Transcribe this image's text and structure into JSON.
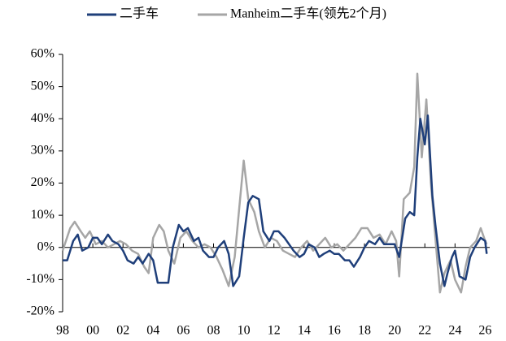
{
  "chart_data": {
    "type": "line",
    "series": [
      {
        "name": "二手车",
        "color": "#1f3f7a",
        "x": [
          1998.0,
          1998.3,
          1998.7,
          1999.0,
          1999.3,
          1999.7,
          2000.0,
          2000.3,
          2000.6,
          2001.0,
          2001.3,
          2001.7,
          2002.0,
          2002.3,
          2002.7,
          2003.0,
          2003.3,
          2003.7,
          2004.0,
          2004.3,
          2004.7,
          2005.0,
          2005.3,
          2005.7,
          2006.0,
          2006.3,
          2006.7,
          2007.0,
          2007.3,
          2007.7,
          2008.0,
          2008.3,
          2008.7,
          2009.0,
          2009.3,
          2009.7,
          2010.0,
          2010.3,
          2010.6,
          2011.0,
          2011.3,
          2011.7,
          2012.0,
          2012.3,
          2012.7,
          2013.0,
          2013.3,
          2013.7,
          2014.0,
          2014.3,
          2014.7,
          2015.0,
          2015.3,
          2015.7,
          2016.0,
          2016.3,
          2016.7,
          2017.0,
          2017.3,
          2017.7,
          2018.0,
          2018.3,
          2018.7,
          2019.0,
          2019.3,
          2019.7,
          2020.0,
          2020.3,
          2020.7,
          2021.0,
          2021.3,
          2021.5,
          2021.7,
          2022.0,
          2022.2,
          2022.5,
          2022.7,
          2023.0,
          2023.3,
          2023.5,
          2023.8,
          2024.0,
          2024.3,
          2024.7,
          2025.0,
          2025.3,
          2025.7,
          2026.0,
          2026.1
        ],
        "values": [
          -4,
          -4,
          2,
          4,
          -1,
          0,
          3,
          3,
          1,
          4,
          2,
          1,
          -1,
          -4,
          -5,
          -3,
          -5,
          -2,
          -4,
          -11,
          -11,
          -11,
          0,
          7,
          5,
          6,
          2,
          3,
          -1,
          -3,
          -3,
          0,
          2,
          -2,
          -12,
          -9,
          3,
          14,
          16,
          15,
          5,
          2,
          5,
          5,
          3,
          1,
          -1,
          -3,
          -2,
          1,
          0,
          -3,
          -2,
          -1,
          -2,
          -2,
          -4,
          -4,
          -6,
          -3,
          0,
          2,
          1,
          3,
          1,
          1,
          1,
          -3,
          9,
          11,
          10,
          28,
          40,
          32,
          41,
          16,
          7,
          -5,
          -12,
          -8,
          -3,
          -1,
          -9,
          -10,
          -3,
          0,
          3,
          2,
          -2
        ]
      },
      {
        "name": "Manheim二手车(领先2个月)",
        "color": "#a6a6a6",
        "x": [
          1998.0,
          1998.5,
          1998.8,
          1999.2,
          1999.5,
          1999.8,
          2000.2,
          2000.6,
          2001.0,
          2001.4,
          2001.8,
          2002.2,
          2002.6,
          2003.0,
          2003.4,
          2003.7,
          2004.0,
          2004.4,
          2004.7,
          2005.0,
          2005.4,
          2005.8,
          2006.2,
          2006.6,
          2007.0,
          2007.4,
          2007.8,
          2008.2,
          2008.6,
          2009.0,
          2009.4,
          2009.7,
          2010.0,
          2010.3,
          2010.7,
          2011.0,
          2011.4,
          2011.8,
          2012.2,
          2012.6,
          2013.0,
          2013.4,
          2013.8,
          2014.2,
          2014.6,
          2015.0,
          2015.4,
          2015.8,
          2016.2,
          2016.6,
          2017.0,
          2017.4,
          2017.8,
          2018.2,
          2018.6,
          2019.0,
          2019.4,
          2019.8,
          2020.1,
          2020.3,
          2020.6,
          2021.0,
          2021.3,
          2021.5,
          2021.8,
          2022.1,
          2022.4,
          2022.7,
          2023.0,
          2023.3,
          2023.7,
          2024.0,
          2024.4,
          2024.7,
          2025.0,
          2025.4,
          2025.7,
          2026.0,
          2026.1
        ],
        "values": [
          -1,
          6,
          8,
          5,
          3,
          5,
          1,
          2,
          0,
          1,
          2,
          1,
          -1,
          -2,
          -6,
          -8,
          3,
          7,
          5,
          -1,
          -5,
          3,
          5,
          2,
          0,
          1,
          0,
          -3,
          -7,
          -12,
          -3,
          12,
          27,
          15,
          11,
          5,
          0,
          3,
          2,
          -1,
          -2,
          -3,
          0,
          2,
          -1,
          1,
          3,
          0,
          1,
          -1,
          1,
          3,
          6,
          6,
          3,
          4,
          1,
          5,
          2,
          -9,
          15,
          17,
          25,
          54,
          28,
          46,
          20,
          3,
          -14,
          -8,
          -4,
          -10,
          -14,
          -6,
          0,
          2,
          6,
          2,
          1
        ]
      }
    ],
    "xlim": [
      1998,
      2026.3
    ],
    "xticks": [
      {
        "value": 1998,
        "label": "98"
      },
      {
        "value": 2000,
        "label": "00"
      },
      {
        "value": 2002,
        "label": "02"
      },
      {
        "value": 2004,
        "label": "04"
      },
      {
        "value": 2006,
        "label": "06"
      },
      {
        "value": 2008,
        "label": "08"
      },
      {
        "value": 2010,
        "label": "10"
      },
      {
        "value": 2012,
        "label": "12"
      },
      {
        "value": 2014,
        "label": "14"
      },
      {
        "value": 2016,
        "label": "16"
      },
      {
        "value": 2018,
        "label": "18"
      },
      {
        "value": 2020,
        "label": "20"
      },
      {
        "value": 2022,
        "label": "22"
      },
      {
        "value": 2024,
        "label": "24"
      },
      {
        "value": 2026,
        "label": "26"
      }
    ],
    "ylim": [
      -20,
      60
    ],
    "yticks": [
      {
        "value": -20,
        "label": "-20%"
      },
      {
        "value": -10,
        "label": "-10%"
      },
      {
        "value": 0,
        "label": "0%"
      },
      {
        "value": 10,
        "label": "10%"
      },
      {
        "value": 20,
        "label": "20%"
      },
      {
        "value": 30,
        "label": "30%"
      },
      {
        "value": 40,
        "label": "40%"
      },
      {
        "value": 50,
        "label": "50%"
      },
      {
        "value": 60,
        "label": "60%"
      }
    ],
    "grid": false
  }
}
